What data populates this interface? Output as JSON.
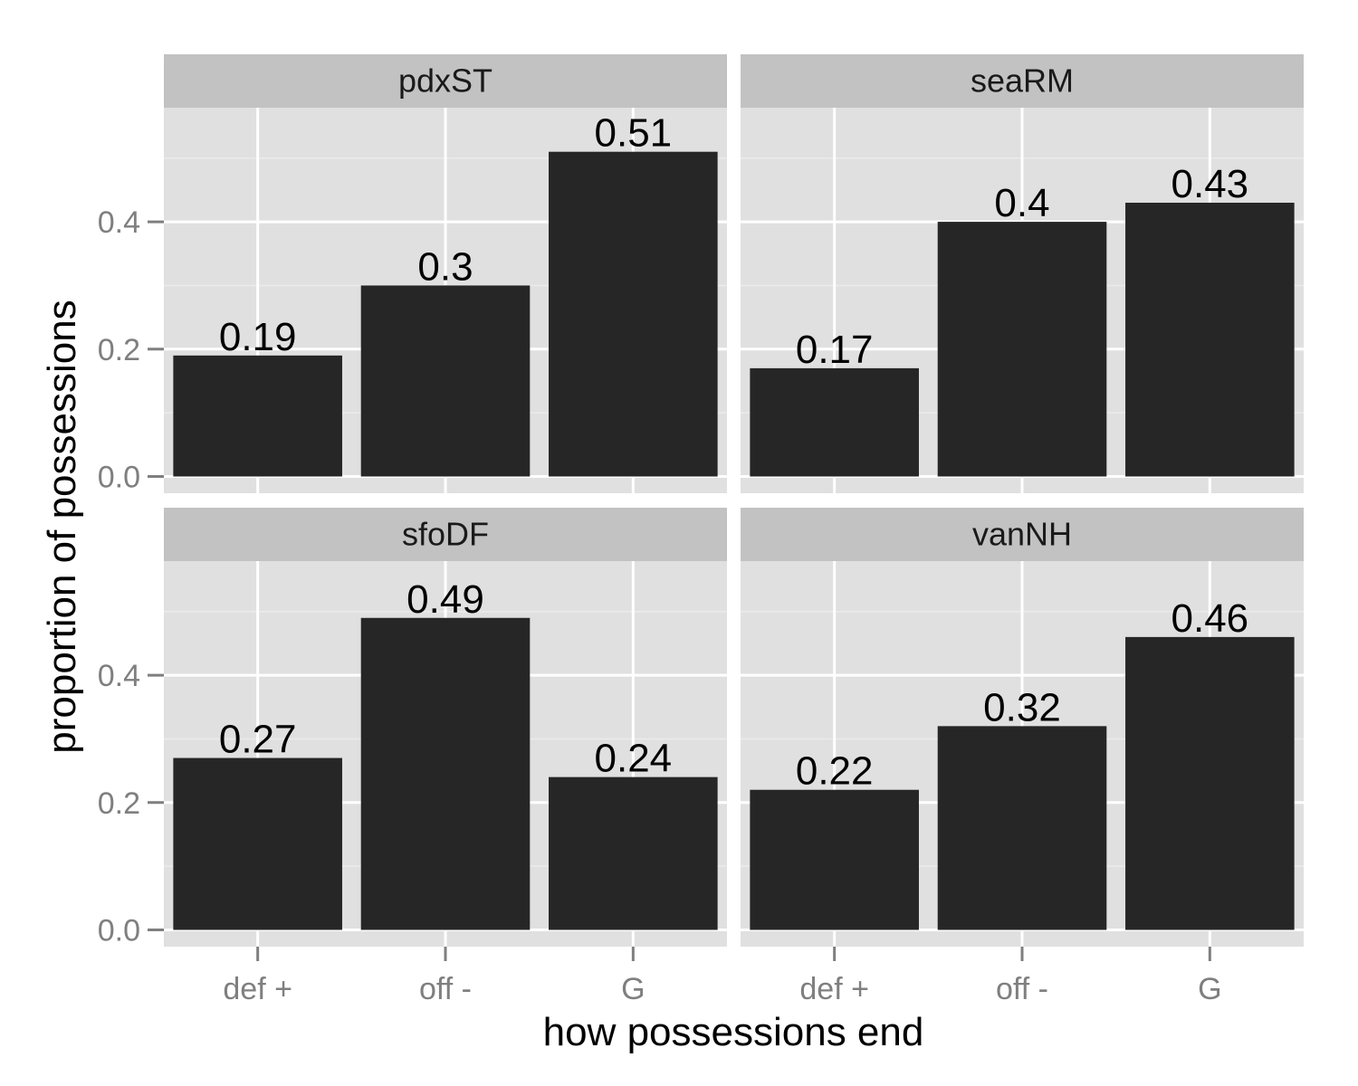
{
  "chart_data": {
    "type": "bar",
    "layout": "facet-grid 2x2",
    "xlabel": "how possessions end",
    "ylabel": "proportion of possessions",
    "categories": [
      "def +",
      "off -",
      "G"
    ],
    "ylim": [
      0,
      0.565
    ],
    "y_ticks": [
      {
        "value": 0.0,
        "label": "0.0"
      },
      {
        "value": 0.2,
        "label": "0.2"
      },
      {
        "value": 0.4,
        "label": "0.4"
      }
    ],
    "grid": true,
    "bar_color": "#262626",
    "panel_background": "#e0e0e0",
    "strip_background": "#c2c2c2",
    "panels": [
      {
        "name": "pdxST",
        "values": [
          0.19,
          0.3,
          0.51
        ],
        "labels": [
          "0.19",
          "0.3",
          "0.51"
        ]
      },
      {
        "name": "seaRM",
        "values": [
          0.17,
          0.4,
          0.43
        ],
        "labels": [
          "0.17",
          "0.4",
          "0.43"
        ]
      },
      {
        "name": "sfoDF",
        "values": [
          0.27,
          0.49,
          0.24
        ],
        "labels": [
          "0.27",
          "0.49",
          "0.24"
        ]
      },
      {
        "name": "vanNH",
        "values": [
          0.22,
          0.32,
          0.46
        ],
        "labels": [
          "0.22",
          "0.32",
          "0.46"
        ]
      }
    ]
  }
}
